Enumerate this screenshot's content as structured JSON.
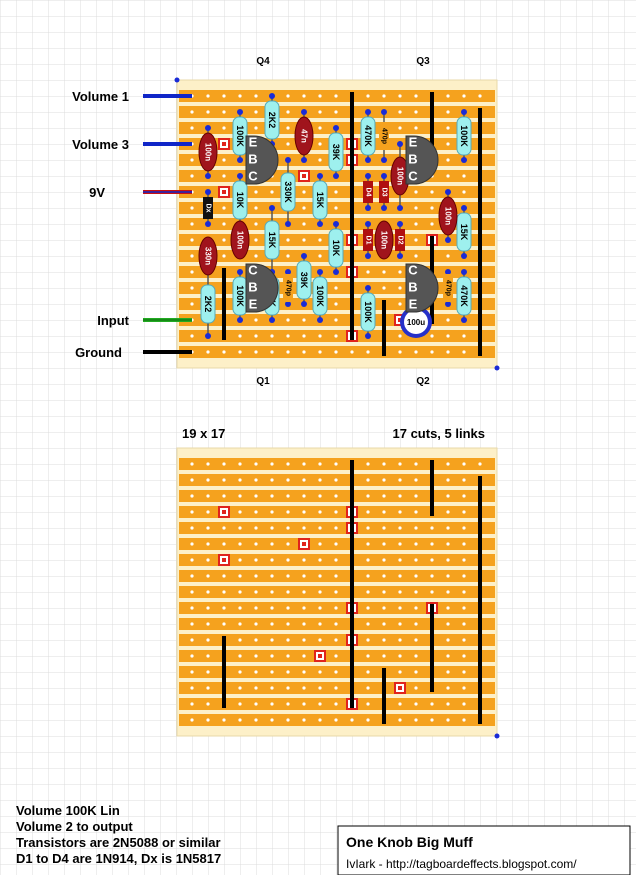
{
  "transistor_labels": [
    "Q4",
    "Q3",
    "Q1",
    "Q2"
  ],
  "wires": [
    "Volume 1",
    "Volume 3",
    "9V",
    "Input",
    "Ground"
  ],
  "resistors": [
    "100K",
    "2K2",
    "39K",
    "470K",
    "100K",
    "10K",
    "330K",
    "15K",
    "15K",
    "10K",
    "15K",
    "39K",
    "100K",
    "2K2",
    "100K",
    "470K",
    "100K",
    "470K"
  ],
  "capacitors": [
    "100n",
    "47n",
    "100n",
    "100n",
    "100n",
    "330n",
    "100n"
  ],
  "film_capacitors": [
    "470p",
    "470p",
    "470p"
  ],
  "electrolytic": "100u",
  "diodes": [
    "D4",
    "D3",
    "D1",
    "D2",
    "Dx"
  ],
  "transistors": [
    "EBC",
    "EBC",
    "CBE",
    "CBE"
  ],
  "board_size": "19 x 17",
  "cuts_links": "17 cuts, 5 links",
  "notes": [
    "Volume 100K Lin",
    "Volume 2 to output",
    "Transistors are 2N5088 or similar",
    "D1 to D4 are 1N914, Dx is 1N5817"
  ],
  "title": {
    "name": "One Knob Big Muff",
    "credit": "IvIark - http://tagboardeffects.blogspot.com/"
  }
}
